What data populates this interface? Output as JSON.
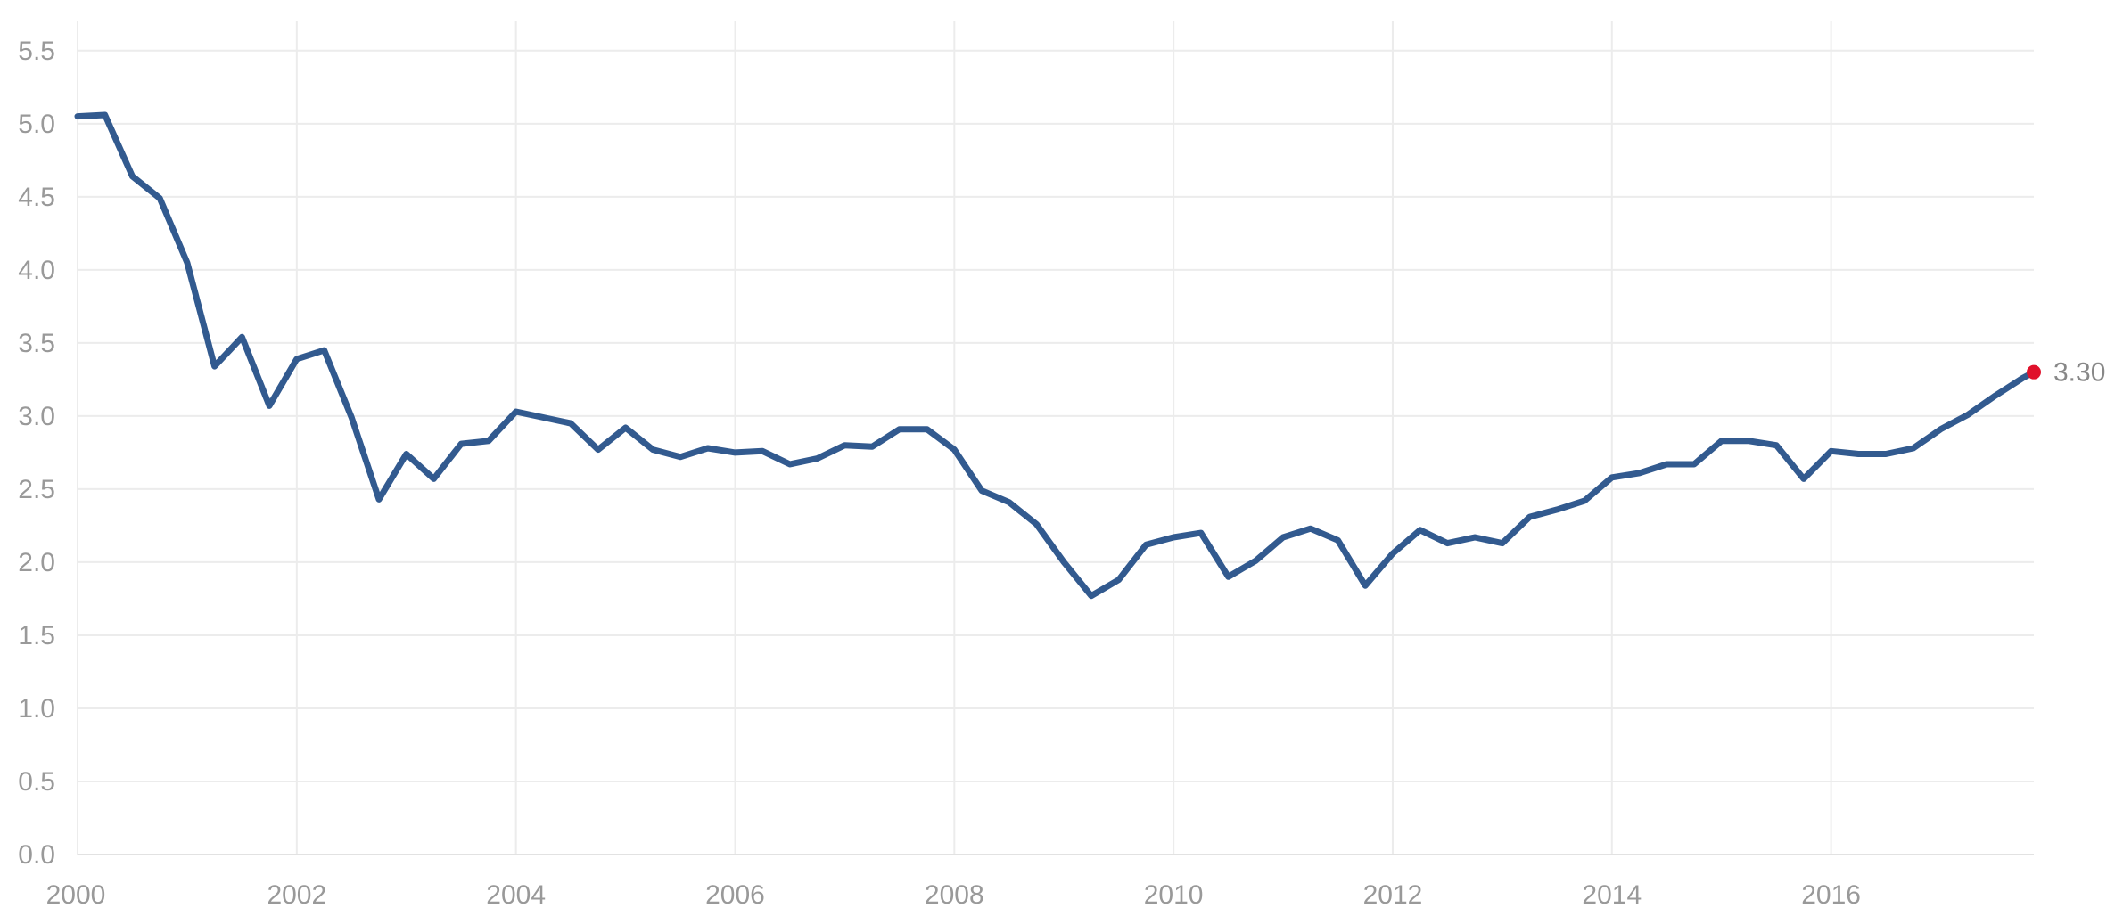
{
  "chart_data": {
    "type": "line",
    "title": "",
    "xlabel": "",
    "ylabel": "",
    "xlim": [
      2000,
      2017.85
    ],
    "ylim": [
      0,
      5.7
    ],
    "grid": true,
    "x_ticks": [
      2000,
      2002,
      2004,
      2006,
      2008,
      2010,
      2012,
      2014,
      2016
    ],
    "x_tick_labels": [
      "2000",
      "2002",
      "2004",
      "2006",
      "2008",
      "2010",
      "2012",
      "2014",
      "2016"
    ],
    "y_ticks": [
      0,
      0.5,
      1,
      1.5,
      2,
      2.5,
      3,
      3.5,
      4,
      4.5,
      5,
      5.5
    ],
    "y_tick_labels": [
      "0.0",
      "0.5",
      "1.0",
      "1.5",
      "2.0",
      "2.5",
      "3.0",
      "3.5",
      "4.0",
      "4.5",
      "5.0",
      "5.5"
    ],
    "series": [
      {
        "color": "#325a8f",
        "x": [
          2000.0,
          2000.25,
          2000.5,
          2000.75,
          2001.0,
          2001.25,
          2001.5,
          2001.75,
          2002.0,
          2002.25,
          2002.5,
          2002.75,
          2003.0,
          2003.25,
          2003.5,
          2003.75,
          2004.0,
          2004.25,
          2004.5,
          2004.75,
          2005.0,
          2005.25,
          2005.5,
          2005.75,
          2006.0,
          2006.25,
          2006.5,
          2006.75,
          2007.0,
          2007.25,
          2007.5,
          2007.75,
          2008.0,
          2008.25,
          2008.5,
          2008.75,
          2009.0,
          2009.25,
          2009.5,
          2009.75,
          2010.0,
          2010.25,
          2010.5,
          2010.75,
          2011.0,
          2011.25,
          2011.5,
          2011.75,
          2012.0,
          2012.25,
          2012.5,
          2012.75,
          2013.0,
          2013.25,
          2013.5,
          2013.75,
          2014.0,
          2014.25,
          2014.5,
          2014.75,
          2015.0,
          2015.25,
          2015.5,
          2015.75,
          2016.0,
          2016.25,
          2016.5,
          2016.75,
          2017.0,
          2017.25,
          2017.5,
          2017.75,
          2017.85
        ],
        "y": [
          5.05,
          5.06,
          4.64,
          4.49,
          4.05,
          3.34,
          3.54,
          3.07,
          3.39,
          3.45,
          2.99,
          2.43,
          2.74,
          2.57,
          2.81,
          2.83,
          3.03,
          2.99,
          2.95,
          2.77,
          2.92,
          2.77,
          2.72,
          2.78,
          2.75,
          2.76,
          2.67,
          2.71,
          2.8,
          2.79,
          2.91,
          2.91,
          2.77,
          2.49,
          2.41,
          2.26,
          2.0,
          1.77,
          1.88,
          2.12,
          2.17,
          2.2,
          1.9,
          2.01,
          2.17,
          2.23,
          2.15,
          1.84,
          2.06,
          2.22,
          2.13,
          2.17,
          2.13,
          2.31,
          2.36,
          2.42,
          2.58,
          2.61,
          2.67,
          2.67,
          2.83,
          2.83,
          2.8,
          2.57,
          2.76,
          2.74,
          2.74,
          2.78,
          2.91,
          3.01,
          3.14,
          3.26,
          3.3
        ]
      }
    ],
    "end_marker": {
      "x": 2017.85,
      "y": 3.3,
      "label": "3.30",
      "color": "#e0112b"
    }
  }
}
